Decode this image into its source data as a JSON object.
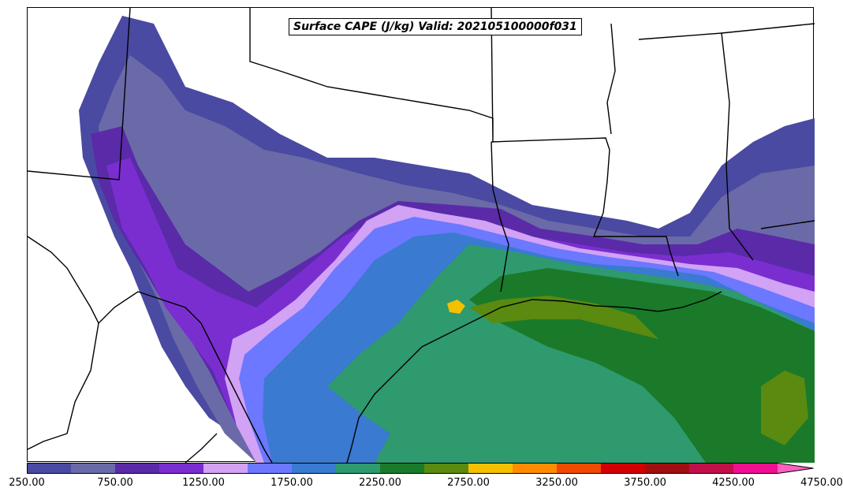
{
  "title": "Surface CAPE (J/kg) Valid: 202105100000f031",
  "colorbar": {
    "colors": [
      "#4a4aa3",
      "#6a6aa8",
      "#5a2aa8",
      "#7a2ed0",
      "#d2a2f5",
      "#6b78ff",
      "#3a7ad0",
      "#2e9a6e",
      "#1a7a2a",
      "#5a8a10",
      "#f5c000",
      "#ff8c00",
      "#ee4a00",
      "#d20000",
      "#a01010",
      "#c0104a",
      "#ee1090",
      "#ff60c0"
    ],
    "ticks": [
      "250.00",
      "750.00",
      "1250.00",
      "1750.00",
      "2250.00",
      "2750.00",
      "3250.00",
      "3750.00",
      "4250.00",
      "4750.00"
    ]
  }
}
